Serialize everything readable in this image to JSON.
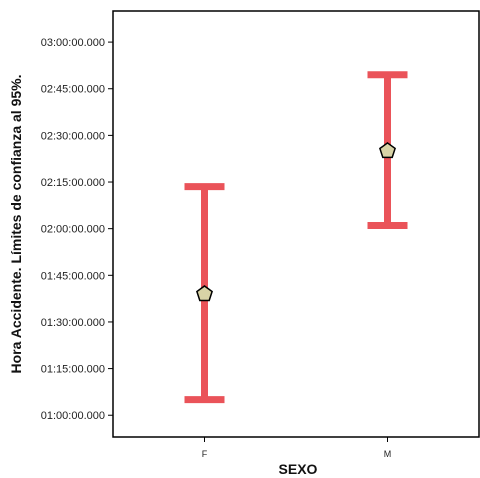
{
  "chart_data": {
    "type": "errorbar",
    "xlabel": "SEXO",
    "ylabel": "Hora Accidente. Límites de confianza al 95%.",
    "categories": [
      "F",
      "M"
    ],
    "y_ticks": [
      "01:00:00.000",
      "01:15:00.000",
      "01:30:00.000",
      "01:45:00.000",
      "02:00:00.000",
      "02:15:00.000",
      "02:30:00.000",
      "02:45:00.000",
      "03:00:00.000"
    ],
    "ylim": [
      "00:53:00",
      "03:10:00"
    ],
    "series": [
      {
        "points": [
          {
            "category": "F",
            "mean": "01:39:00",
            "lower": "01:05:00",
            "upper": "02:13:30"
          },
          {
            "category": "M",
            "mean": "02:25:00",
            "lower": "02:01:00",
            "upper": "02:49:30"
          }
        ]
      }
    ],
    "grid": false,
    "colors": {
      "errorbar": "#ea5359",
      "marker_fill": "#d8d3a6",
      "marker_stroke": "#000000"
    }
  }
}
